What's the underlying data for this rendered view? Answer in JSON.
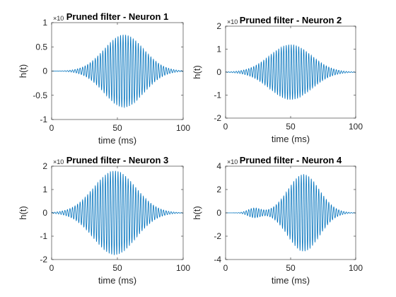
{
  "colors": {
    "line": "#0072BD",
    "axes": "#262626",
    "background": "#ffffff"
  },
  "chart_data": [
    {
      "type": "line",
      "title": "Pruned filter - Neuron 1",
      "xlabel": "time (ms)",
      "ylabel": "h(t)",
      "xlim": [
        0,
        100
      ],
      "ylim": [
        -1,
        1
      ],
      "xticks": [
        0,
        50,
        100
      ],
      "yticks": [
        -1,
        -0.5,
        0,
        0.5,
        1
      ],
      "ytick_labels": [
        "-1",
        "-0.5",
        "0",
        "0.5",
        "1"
      ],
      "y_exponent_label": "×10",
      "signal": {
        "description": "oscillating filter with Gaussian envelope",
        "center_ms": 55,
        "width_ms": 15,
        "peak_amplitude": 0.75,
        "cycles": 52,
        "bump": null
      }
    },
    {
      "type": "line",
      "title": "Pruned filter - Neuron 2",
      "xlabel": "time (ms)",
      "ylabel": "h(t)",
      "xlim": [
        0,
        100
      ],
      "ylim": [
        -2,
        2
      ],
      "xticks": [
        0,
        50,
        100
      ],
      "yticks": [
        -2,
        -1,
        0,
        1,
        2
      ],
      "ytick_labels": [
        "-2",
        "-1",
        "0",
        "1",
        "2"
      ],
      "y_exponent_label": "×10",
      "signal": {
        "description": "oscillating filter with Gaussian envelope",
        "center_ms": 50,
        "width_ms": 16,
        "peak_amplitude": 1.2,
        "cycles": 52,
        "bump": null
      }
    },
    {
      "type": "line",
      "title": "Pruned filter - Neuron 3",
      "xlabel": "time (ms)",
      "ylabel": "h(t)",
      "xlim": [
        0,
        100
      ],
      "ylim": [
        -2,
        2
      ],
      "xticks": [
        0,
        50,
        100
      ],
      "yticks": [
        -2,
        -1,
        0,
        1,
        2
      ],
      "ytick_labels": [
        "-2",
        "-1",
        "0",
        "1",
        "2"
      ],
      "y_exponent_label": "×10",
      "signal": {
        "description": "oscillating filter with Gaussian envelope",
        "center_ms": 48,
        "width_ms": 16,
        "peak_amplitude": 1.8,
        "cycles": 52,
        "bump": null
      }
    },
    {
      "type": "line",
      "title": "Pruned filter - Neuron 4",
      "xlabel": "time (ms)",
      "ylabel": "h(t)",
      "xlim": [
        0,
        100
      ],
      "ylim": [
        -4,
        4
      ],
      "xticks": [
        0,
        50,
        100
      ],
      "yticks": [
        -4,
        -2,
        0,
        2,
        4
      ],
      "ytick_labels": [
        "-4",
        "-2",
        "0",
        "2",
        "4"
      ],
      "y_exponent_label": "×10",
      "signal": {
        "description": "oscillating filter with Gaussian envelope and small early bump",
        "center_ms": 60,
        "width_ms": 12,
        "peak_amplitude": 3.3,
        "cycles": 52,
        "bump": {
          "center_ms": 22,
          "width_ms": 5,
          "amplitude": 0.4
        }
      }
    }
  ]
}
